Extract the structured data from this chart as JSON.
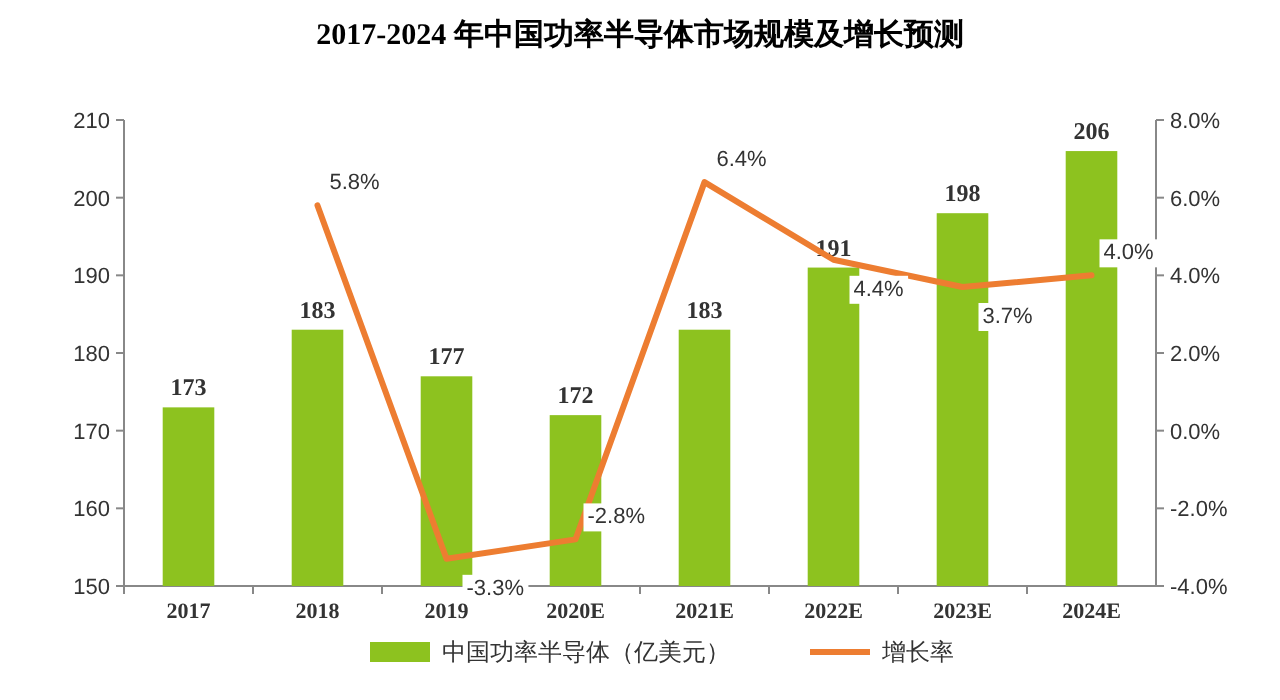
{
  "chart_data": {
    "type": "bar",
    "title": "2017-2024 年中国功率半导体市场规模及增长预测",
    "categories": [
      "2017",
      "2018",
      "2019",
      "2020E",
      "2021E",
      "2022E",
      "2023E",
      "2024E"
    ],
    "series": [
      {
        "name": "中国功率半导体（亿美元）",
        "color": "#8dc21f",
        "values": [
          173,
          183,
          177,
          172,
          183,
          191,
          198,
          206
        ],
        "value_labels": [
          "173",
          "183",
          "177",
          "172",
          "183",
          "191",
          "198",
          "206"
        ]
      },
      {
        "name": "增长率",
        "type": "line",
        "axis": "y2",
        "color": "#ed7d31",
        "values": [
          null,
          5.8,
          -3.3,
          -2.8,
          6.4,
          4.4,
          3.7,
          4.0
        ],
        "value_labels": [
          null,
          "5.8%",
          "-3.3%",
          "-2.8%",
          "6.4%",
          "4.4%",
          "3.7%",
          "4.0%"
        ]
      }
    ],
    "ylim": [
      150,
      210
    ],
    "yticks": [
      150,
      160,
      170,
      180,
      190,
      200,
      210
    ],
    "y2lim": [
      -4,
      8
    ],
    "y2ticks": [
      {
        "value": -4,
        "label": "-4.0%"
      },
      {
        "value": -2,
        "label": "-2.0%"
      },
      {
        "value": 0,
        "label": "0.0%"
      },
      {
        "value": 2,
        "label": "2.0%"
      },
      {
        "value": 4,
        "label": "4.0%"
      },
      {
        "value": 6,
        "label": "6.0%"
      },
      {
        "value": 8,
        "label": "8.0%"
      }
    ],
    "grid": false,
    "legend": "bottom"
  }
}
